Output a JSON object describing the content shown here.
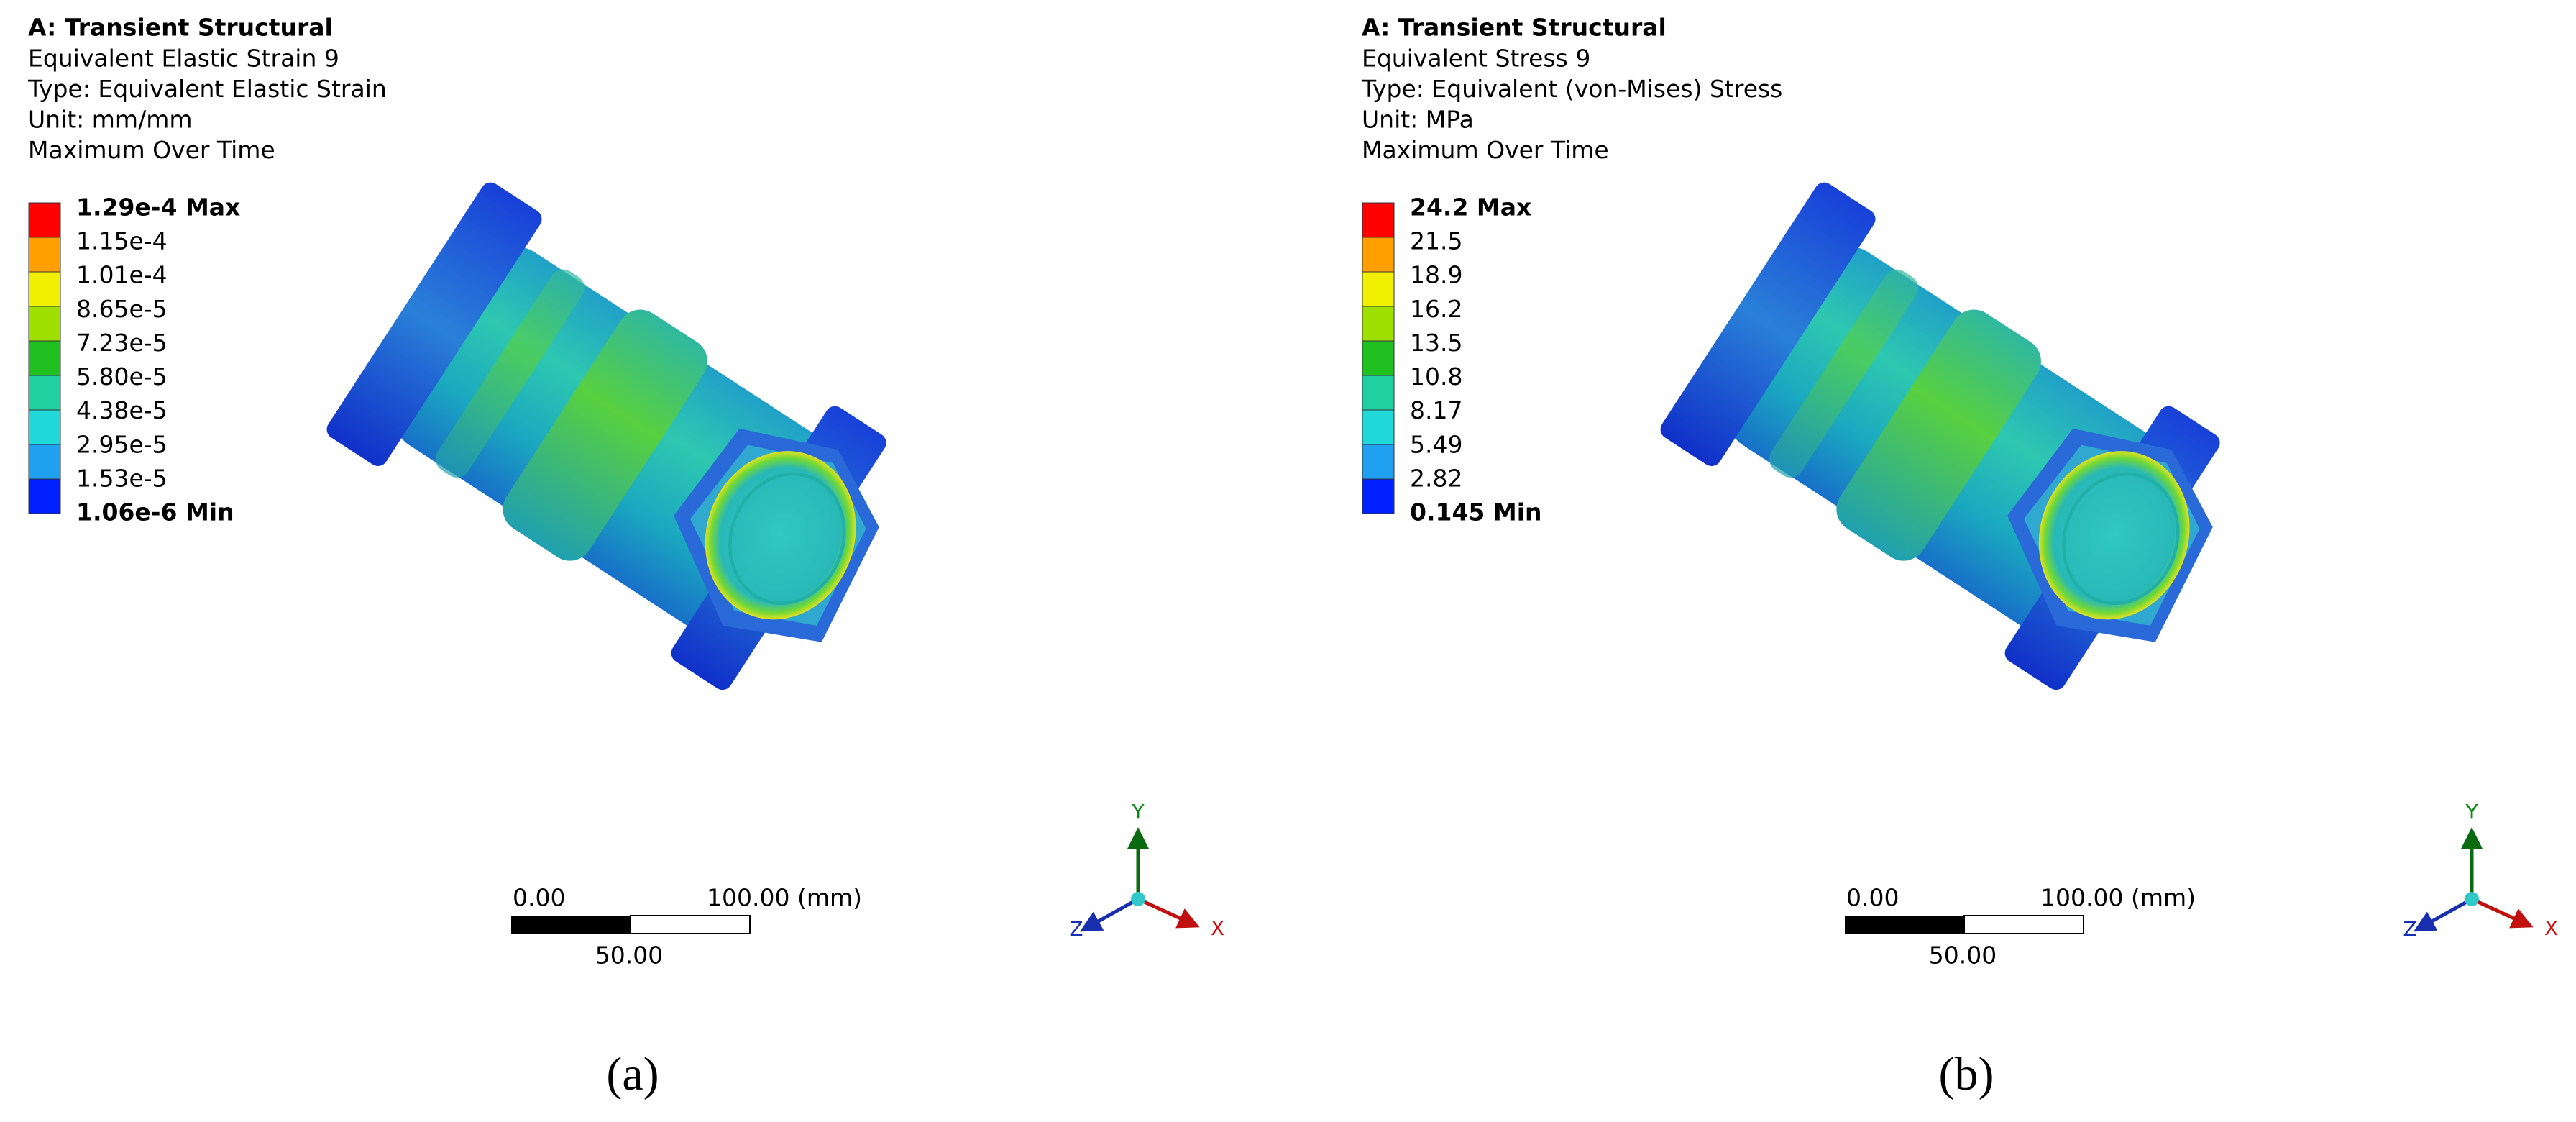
{
  "panels": [
    {
      "header": {
        "title": "A: Transient Structural",
        "lines": [
          "Equivalent Elastic Strain 9",
          "Type: Equivalent Elastic Strain",
          "Unit: mm/mm",
          "Maximum Over Time"
        ]
      },
      "legend": {
        "labels": [
          "1.29e-4 Max",
          "1.15e-4",
          "1.01e-4",
          "8.65e-5",
          "7.23e-5",
          "5.80e-5",
          "4.38e-5",
          "2.95e-5",
          "1.53e-5",
          "1.06e-6 Min"
        ]
      },
      "scale_bar": {
        "start": "0.00",
        "end": "100.00 (mm)",
        "mid": "50.00"
      },
      "triad": {
        "x": "X",
        "y": "Y",
        "z": "Z"
      },
      "caption": "(a)"
    },
    {
      "header": {
        "title": "A: Transient Structural",
        "lines": [
          "Equivalent Stress 9",
          "Type: Equivalent (von-Mises) Stress",
          "Unit: MPa",
          "Maximum Over Time"
        ]
      },
      "legend": {
        "labels": [
          "24.2 Max",
          "21.5",
          "18.9",
          "16.2",
          "13.5",
          "10.8",
          "8.17",
          "5.49",
          "2.82",
          "0.145 Min"
        ]
      },
      "scale_bar": {
        "start": "0.00",
        "end": "100.00 (mm)",
        "mid": "50.00"
      },
      "triad": {
        "x": "X",
        "y": "Y",
        "z": "Z"
      },
      "caption": "(b)"
    }
  ]
}
